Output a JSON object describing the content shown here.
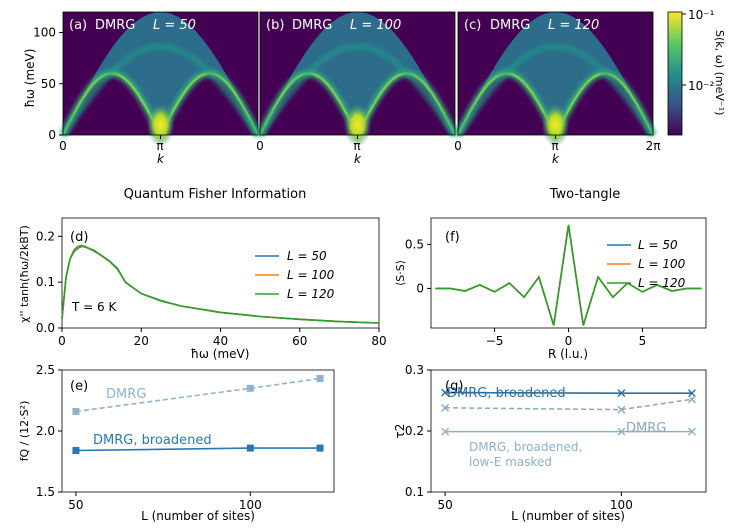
{
  "heatmap_panels": [
    {
      "label": "(a)",
      "method": "DMRG",
      "L_text": "L = 50"
    },
    {
      "label": "(b)",
      "method": "DMRG",
      "L_text": "L = 100"
    },
    {
      "label": "(c)",
      "method": "DMRG",
      "L_text": "L = 120"
    }
  ],
  "section_titles": {
    "left": "Quantum Fisher Information",
    "right": "Two-tangle"
  },
  "colors": {
    "L50": "#1f77b4",
    "L100": "#ff7f0e",
    "L120": "#2ca02c",
    "qfi_dark": "#2878b0",
    "qfi_light": "#8fb2cf",
    "tau_dark": "#2c6fa3",
    "tau_light": "#8db0c8"
  },
  "chart_data": [
    {
      "type": "heatmap",
      "panels": [
        "(a)",
        "(b)",
        "(c)"
      ],
      "title": "DMRG S(k, ω)",
      "xlabel": "k",
      "ylabel": "ħω (meV)",
      "xlim": [
        0,
        6.283
      ],
      "ylim": [
        0,
        120
      ],
      "x_tick_labels": [
        "0",
        "π",
        "0",
        "π",
        "0",
        "π",
        "2π"
      ],
      "yticks": [
        0,
        50,
        100
      ],
      "colorbar": {
        "label": "S(k, ω)  (meV⁻¹)",
        "scale": "log",
        "range": [
          0.003,
          0.1
        ],
        "tick_labels": [
          "10⁻¹",
          "10⁻²"
        ]
      },
      "lower_boundary_max_meV": 60,
      "upper_boundary_max_meV": 120
    },
    {
      "type": "line",
      "panel": "(d)",
      "xlabel": "ħω (meV)",
      "ylabel": "χ'' tanh(ħω/2kBT)",
      "xlim": [
        0,
        80
      ],
      "ylim": [
        0,
        0.24
      ],
      "xticks": [
        0,
        20,
        40,
        60,
        80
      ],
      "yticks": [
        0.0,
        0.1,
        0.2
      ],
      "annotation": "T = 6 K",
      "legend": "center-right",
      "x": [
        0,
        1,
        2,
        3,
        4,
        5,
        6,
        8,
        10,
        12,
        14,
        16,
        20,
        25,
        30,
        40,
        50,
        60,
        70,
        80
      ],
      "series": [
        {
          "name": "L = 50",
          "values": [
            0.02,
            0.11,
            0.15,
            0.17,
            0.178,
            0.18,
            0.177,
            0.168,
            0.158,
            0.146,
            0.13,
            0.1,
            0.075,
            0.06,
            0.048,
            0.034,
            0.025,
            0.019,
            0.014,
            0.011
          ]
        },
        {
          "name": "L = 100",
          "values": [
            0.02,
            0.11,
            0.15,
            0.168,
            0.176,
            0.179,
            0.177,
            0.169,
            0.157,
            0.145,
            0.128,
            0.1,
            0.075,
            0.059,
            0.048,
            0.034,
            0.025,
            0.019,
            0.014,
            0.011
          ]
        },
        {
          "name": "L = 120",
          "values": [
            0.02,
            0.11,
            0.15,
            0.166,
            0.174,
            0.178,
            0.176,
            0.17,
            0.158,
            0.146,
            0.129,
            0.1,
            0.075,
            0.059,
            0.048,
            0.034,
            0.025,
            0.019,
            0.014,
            0.011
          ]
        }
      ]
    },
    {
      "type": "line",
      "panel": "(e)",
      "xlabel": "L (number of sites)",
      "ylabel": "fQ / (12·S²)",
      "ylim": [
        1.5,
        2.5
      ],
      "xticks": [
        50,
        100
      ],
      "yticks": [
        1.5,
        2.0,
        2.5
      ],
      "series": [
        {
          "name": "DMRG",
          "x": [
            50,
            100,
            120
          ],
          "values": [
            2.16,
            2.35,
            2.43
          ],
          "style": "dashed"
        },
        {
          "name": "DMRG, broadened",
          "x": [
            50,
            100,
            120
          ],
          "values": [
            1.84,
            1.86,
            1.86
          ],
          "style": "solid"
        }
      ]
    },
    {
      "type": "line",
      "panel": "(f)",
      "xlabel": "R (l.u.)",
      "ylabel": "⟨S·S⟩",
      "xlim": [
        -9.3,
        9.3
      ],
      "ylim": [
        -0.45,
        0.8
      ],
      "xticks": [
        -5,
        0,
        5
      ],
      "yticks": [
        0,
        0.5
      ],
      "legend": "top-right",
      "x": [
        -9,
        -8,
        -7,
        -6,
        -5,
        -4,
        -3,
        -2,
        -1,
        0,
        1,
        2,
        3,
        4,
        5,
        6,
        7,
        8,
        9
      ],
      "series": [
        {
          "name": "L = 50",
          "values": [
            0.0,
            0.0,
            -0.03,
            0.04,
            -0.04,
            0.06,
            -0.1,
            0.13,
            -0.42,
            0.72,
            -0.42,
            0.13,
            -0.1,
            0.06,
            -0.04,
            0.04,
            -0.03,
            0.0,
            0.0
          ]
        },
        {
          "name": "L = 100",
          "values": [
            0.0,
            0.0,
            -0.03,
            0.04,
            -0.04,
            0.06,
            -0.1,
            0.13,
            -0.42,
            0.72,
            -0.42,
            0.13,
            -0.1,
            0.06,
            -0.04,
            0.04,
            -0.03,
            0.0,
            0.0
          ]
        },
        {
          "name": "L = 120",
          "values": [
            0.0,
            0.0,
            -0.03,
            0.04,
            -0.04,
            0.06,
            -0.1,
            0.13,
            -0.42,
            0.72,
            -0.42,
            0.13,
            -0.1,
            0.06,
            -0.04,
            0.04,
            -0.03,
            0.0,
            0.0
          ]
        }
      ]
    },
    {
      "type": "line",
      "panel": "(g)",
      "xlabel": "L (number of sites)",
      "ylabel": "τ2",
      "ylim": [
        0.1,
        0.3
      ],
      "xticks": [
        50,
        100
      ],
      "yticks": [
        0.1,
        0.2,
        0.3
      ],
      "series": [
        {
          "name": "DMRG, broadened",
          "x": [
            50,
            100,
            120
          ],
          "values": [
            0.263,
            0.262,
            0.262
          ],
          "style": "solid"
        },
        {
          "name": "DMRG",
          "x": [
            50,
            100,
            120
          ],
          "values": [
            0.238,
            0.235,
            0.252
          ],
          "style": "dashed"
        },
        {
          "name": "DMRG, broadened, low-E masked",
          "x": [
            50,
            100,
            120
          ],
          "values": [
            0.199,
            0.199,
            0.199
          ],
          "style": "solid-light"
        }
      ]
    }
  ]
}
